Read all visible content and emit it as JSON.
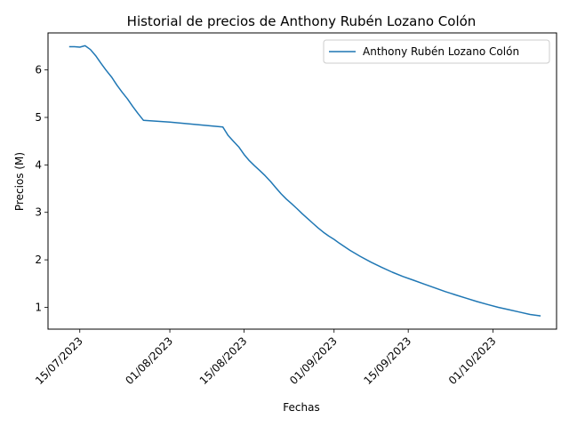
{
  "chart_data": {
    "type": "line",
    "title": "Historial de precios de Anthony Rubén Lozano Colón",
    "xlabel": "Fechas",
    "ylabel": "Precios (M)",
    "x_tick_labels": [
      "15/07/2023",
      "01/08/2023",
      "15/08/2023",
      "01/09/2023",
      "15/09/2023",
      "01/10/2023"
    ],
    "x_tick_dates": [
      "2023-07-15",
      "2023-08-01",
      "2023-08-15",
      "2023-09-01",
      "2023-09-15",
      "2023-10-01"
    ],
    "y_ticks": [
      1,
      2,
      3,
      4,
      5,
      6
    ],
    "xlim": [
      "2023-07-09",
      "2023-10-13"
    ],
    "ylim": [
      0.54,
      6.78
    ],
    "grid": false,
    "legend_position": "top-right",
    "series": [
      {
        "name": "Anthony Rubén Lozano Colón",
        "color": "#1f77b4",
        "points": [
          [
            "2023-07-13",
            6.49
          ],
          [
            "2023-07-14",
            6.49
          ],
          [
            "2023-07-15",
            6.48
          ],
          [
            "2023-07-16",
            6.51
          ],
          [
            "2023-07-17",
            6.43
          ],
          [
            "2023-07-18",
            6.3
          ],
          [
            "2023-07-19",
            6.14
          ],
          [
            "2023-07-20",
            5.99
          ],
          [
            "2023-07-21",
            5.85
          ],
          [
            "2023-07-22",
            5.68
          ],
          [
            "2023-07-23",
            5.53
          ],
          [
            "2023-07-24",
            5.39
          ],
          [
            "2023-07-25",
            5.23
          ],
          [
            "2023-07-26",
            5.08
          ],
          [
            "2023-07-27",
            4.94
          ],
          [
            "2023-08-01",
            4.9
          ],
          [
            "2023-08-06",
            4.85
          ],
          [
            "2023-08-11",
            4.8
          ],
          [
            "2023-08-12",
            4.62
          ],
          [
            "2023-08-13",
            4.5
          ],
          [
            "2023-08-14",
            4.38
          ],
          [
            "2023-08-15",
            4.22
          ],
          [
            "2023-08-16",
            4.09
          ],
          [
            "2023-08-17",
            3.98
          ],
          [
            "2023-08-18",
            3.88
          ],
          [
            "2023-08-19",
            3.77
          ],
          [
            "2023-08-20",
            3.65
          ],
          [
            "2023-08-21",
            3.52
          ],
          [
            "2023-08-22",
            3.39
          ],
          [
            "2023-08-23",
            3.28
          ],
          [
            "2023-08-24",
            3.18
          ],
          [
            "2023-08-25",
            3.08
          ],
          [
            "2023-08-26",
            2.97
          ],
          [
            "2023-08-27",
            2.87
          ],
          [
            "2023-08-28",
            2.77
          ],
          [
            "2023-08-29",
            2.67
          ],
          [
            "2023-08-30",
            2.58
          ],
          [
            "2023-08-31",
            2.5
          ],
          [
            "2023-09-01",
            2.43
          ],
          [
            "2023-09-02",
            2.35
          ],
          [
            "2023-09-04",
            2.2
          ],
          [
            "2023-09-06",
            2.07
          ],
          [
            "2023-09-08",
            1.95
          ],
          [
            "2023-09-10",
            1.84
          ],
          [
            "2023-09-12",
            1.74
          ],
          [
            "2023-09-14",
            1.65
          ],
          [
            "2023-09-16",
            1.57
          ],
          [
            "2023-09-18",
            1.49
          ],
          [
            "2023-09-20",
            1.41
          ],
          [
            "2023-09-22",
            1.33
          ],
          [
            "2023-09-24",
            1.26
          ],
          [
            "2023-09-26",
            1.19
          ],
          [
            "2023-09-28",
            1.12
          ],
          [
            "2023-09-30",
            1.06
          ],
          [
            "2023-10-02",
            1.0
          ],
          [
            "2023-10-04",
            0.95
          ],
          [
            "2023-10-06",
            0.9
          ],
          [
            "2023-10-08",
            0.85
          ],
          [
            "2023-10-10",
            0.82
          ]
        ]
      }
    ]
  }
}
